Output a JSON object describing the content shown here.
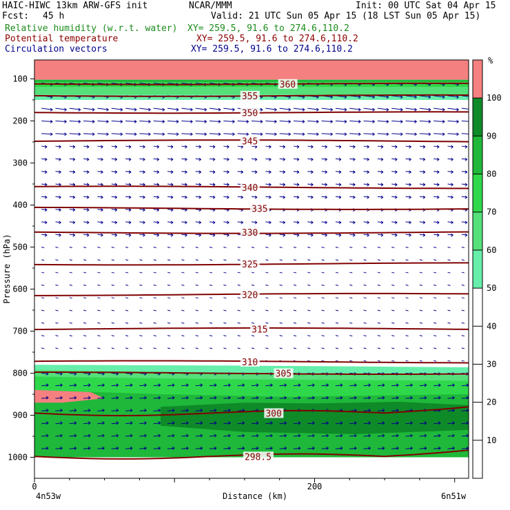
{
  "header": {
    "title": "HAIC-HIWC 13km ARW-GFS init",
    "org": "NCAR/MMM",
    "init": "Init: 00 UTC Sat 04 Apr 15",
    "fcst_label": "Fcst:",
    "fcst_value": "45 h",
    "valid": "Valid: 21 UTC Sun 05 Apr 15 (18 LST Sun 05 Apr 15)",
    "fields": [
      {
        "name": "Relative humidity (w.r.t. water)",
        "xy": "XY= 259.5, 91.6 to 274.6,110.2",
        "color": "#1a8a1a"
      },
      {
        "name": "Potential temperature",
        "xy": "XY= 259.5, 91.6 to 274.6,110.2",
        "color": "#8b0000"
      },
      {
        "name": "Circulation vectors",
        "xy": "XY= 259.5, 91.6 to 274.6,110.2",
        "color": "#00008b"
      }
    ]
  },
  "chart_data": {
    "type": "cross-section",
    "xlabel": "Distance (km)",
    "ylabel": "Pressure (hPa)",
    "xlim": [
      0,
      310
    ],
    "ylim": [
      1050,
      55
    ],
    "x_ticks": [
      0,
      200
    ],
    "y_ticks": [
      100,
      200,
      300,
      400,
      500,
      600,
      700,
      800,
      900,
      1000
    ],
    "x_endpoint_labels": {
      "left": "4n53w",
      "right": "6n51w"
    },
    "colorbar": {
      "unit": "%",
      "ticks": [
        10,
        20,
        30,
        40,
        50,
        60,
        70,
        80,
        90,
        100
      ],
      "levels": [
        {
          "from": 50,
          "to": 60,
          "color": "#66eeaa"
        },
        {
          "from": 60,
          "to": 70,
          "color": "#55e07a"
        },
        {
          "from": 70,
          "to": 80,
          "color": "#2fd84a"
        },
        {
          "from": 80,
          "to": 90,
          "color": "#1fb83a"
        },
        {
          "from": 90,
          "to": 100,
          "color": "#0f8a28"
        },
        {
          "from": 100,
          "to": 110,
          "color": "#f58080"
        }
      ]
    },
    "theta_contours": [
      {
        "label": "360",
        "p": 112,
        "label_x": 175
      },
      {
        "label": "355",
        "p": 140,
        "label_x": 148
      },
      {
        "label": "350",
        "p": 180,
        "label_x": 148
      },
      {
        "label": "345",
        "p": 248,
        "label_x": 148
      },
      {
        "label": "340",
        "p": 358,
        "label_x": 148
      },
      {
        "label": "335",
        "p": 408,
        "label_x": 155
      },
      {
        "label": "330",
        "p": 465,
        "label_x": 148
      },
      {
        "label": "325",
        "p": 540,
        "label_x": 148
      },
      {
        "label": "320",
        "p": 613,
        "label_x": 148
      },
      {
        "label": "315",
        "p": 695,
        "label_x": 155
      },
      {
        "label": "310",
        "p": 773,
        "label_x": 148
      },
      {
        "label": "305",
        "p": 800,
        "label_x": 172
      },
      {
        "label": "300",
        "p": 895,
        "label_x": 165
      },
      {
        "label": "298.5",
        "p": 998,
        "label_x": 150
      }
    ]
  }
}
